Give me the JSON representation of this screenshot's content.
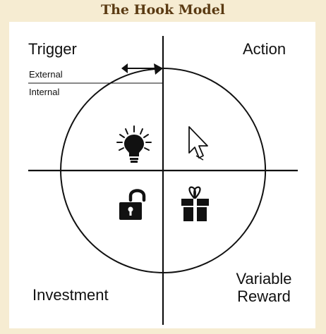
{
  "header": {
    "title": "The Hook Model"
  },
  "quadrants": {
    "trigger": "Trigger",
    "action": "Action",
    "investment": "Investment",
    "reward_line1": "Variable",
    "reward_line2": "Reward"
  },
  "trigger_types": {
    "external": "External",
    "internal": "Internal"
  },
  "icons": {
    "trigger": "lightbulb-icon",
    "action": "cursor-icon",
    "reward": "gift-icon",
    "investment": "padlock-icon"
  },
  "colors": {
    "background": "#f6ecd2",
    "title": "#5a3a12",
    "ink": "#111111"
  }
}
